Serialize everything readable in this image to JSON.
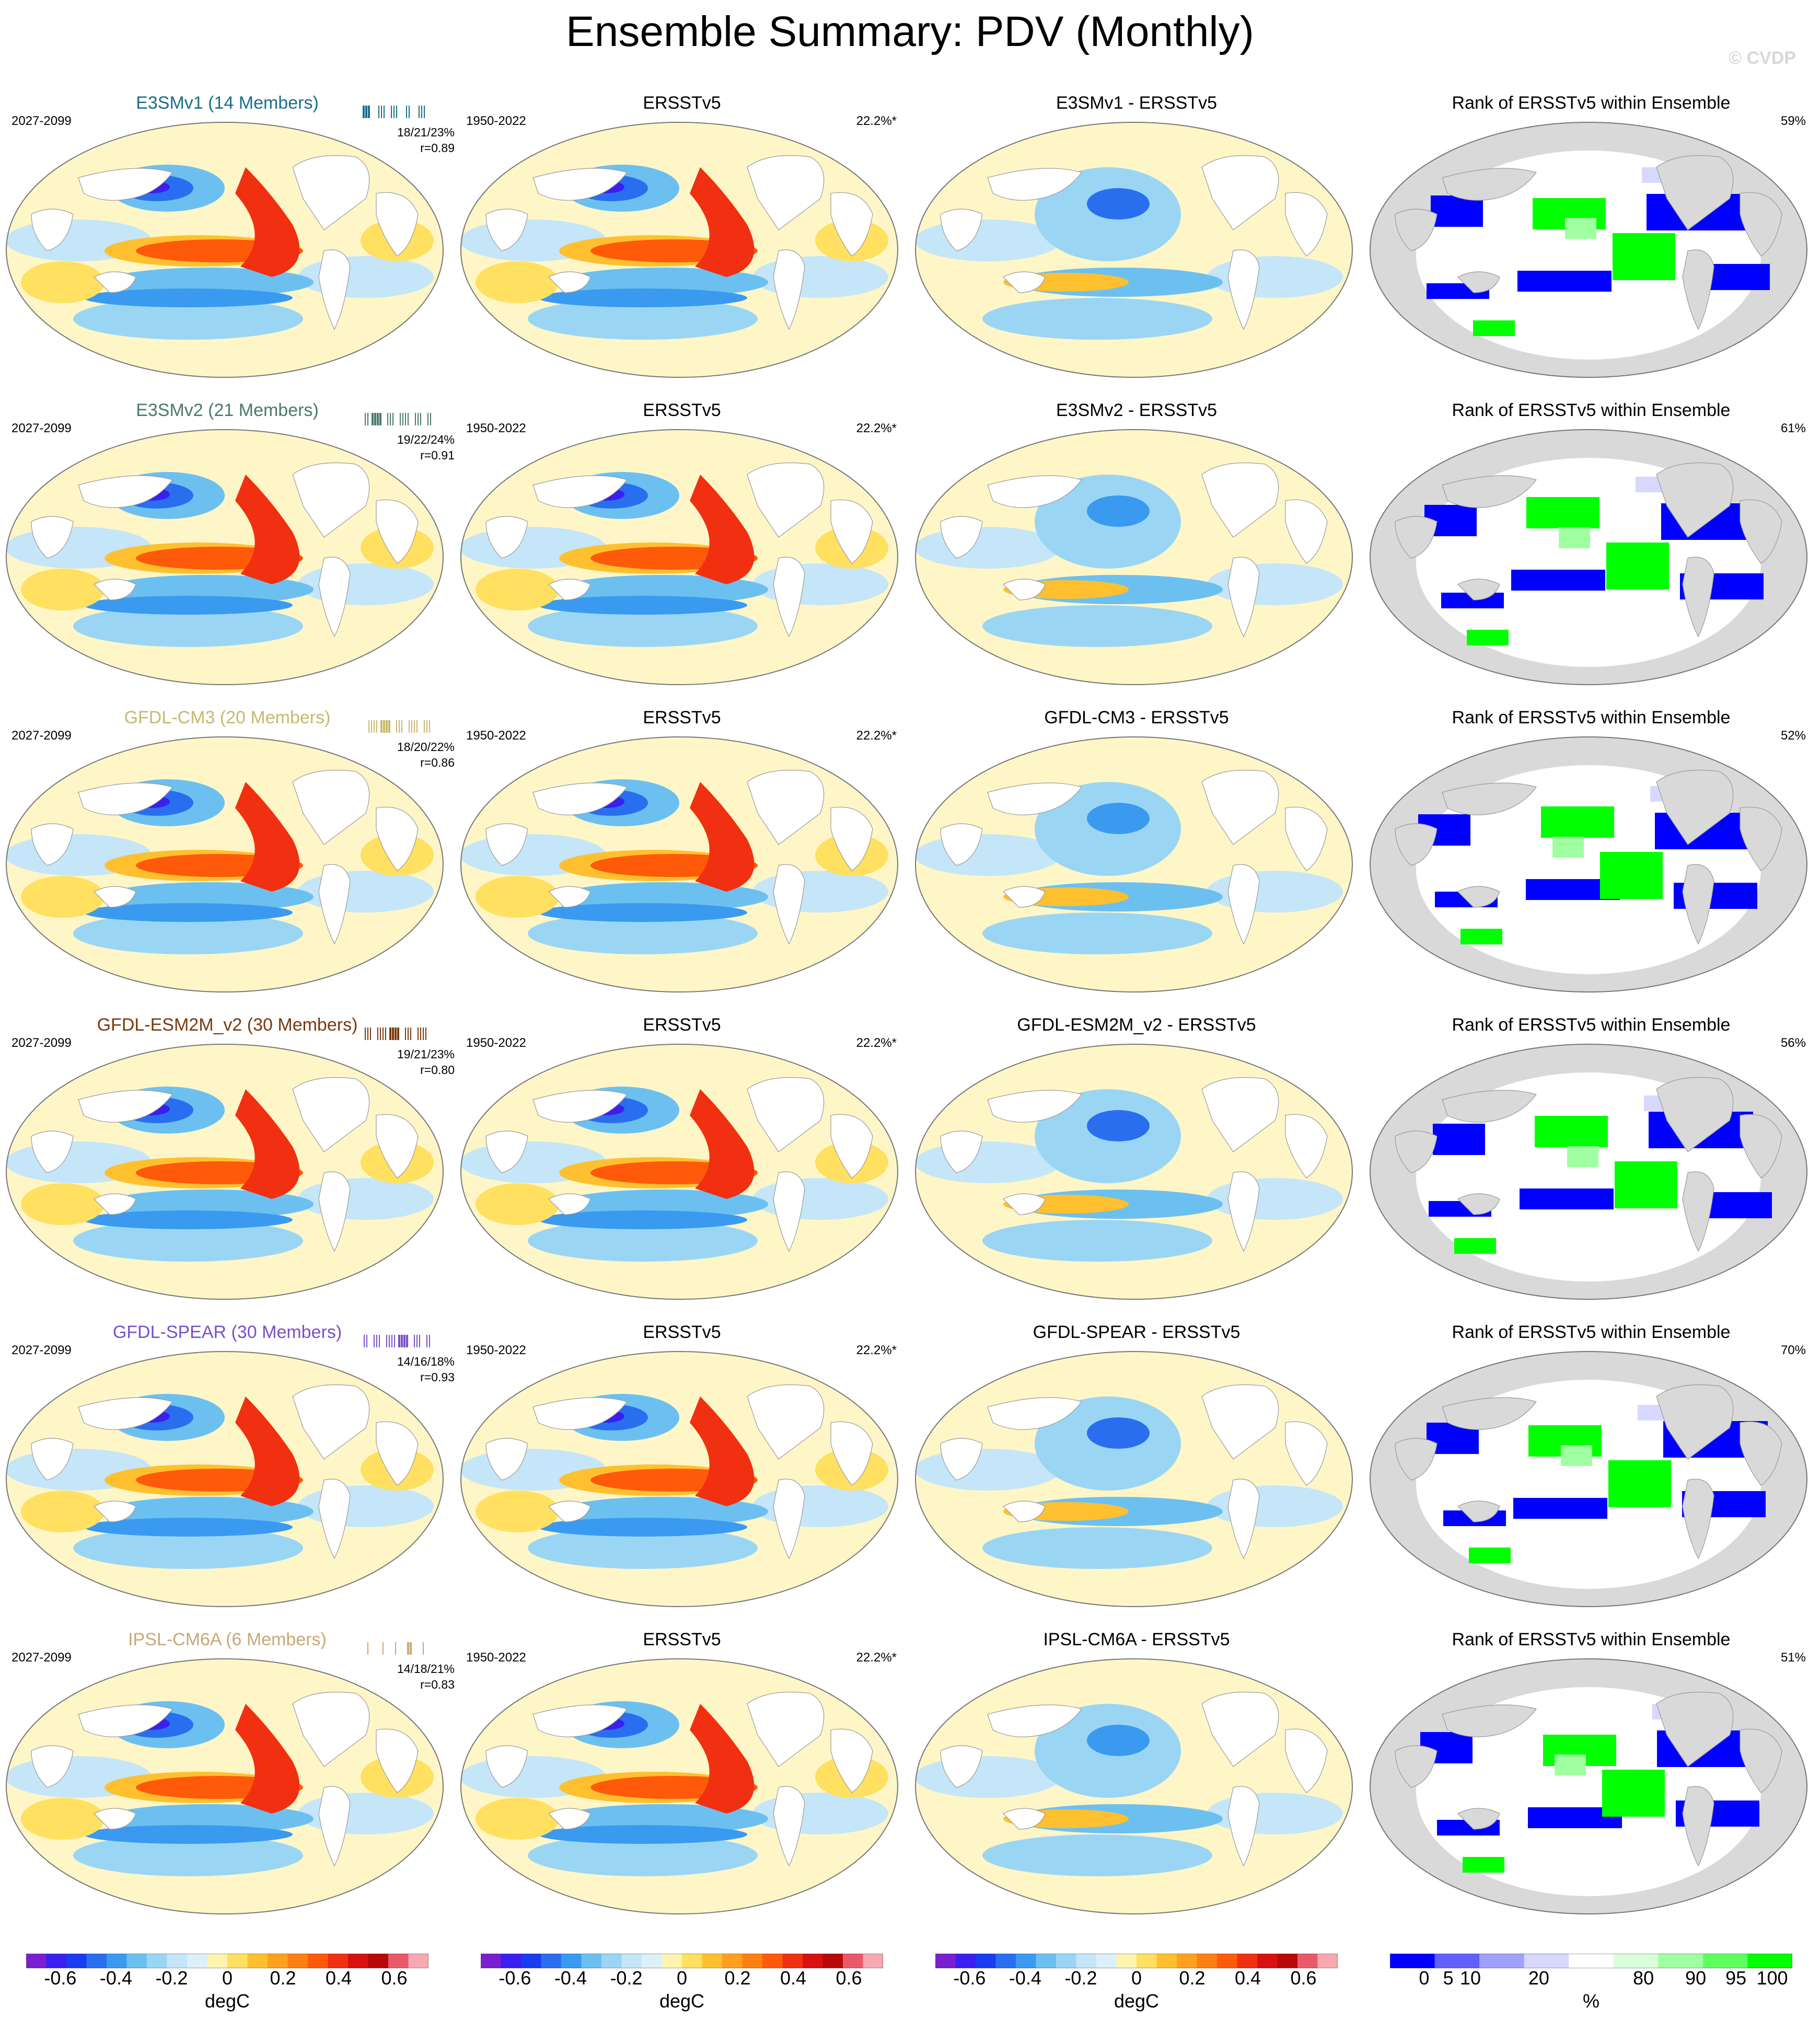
{
  "title": "Ensemble Summary: PDV (Monthly)",
  "watermark": "© CVDP",
  "colors": {
    "neg": [
      "#7a1fd0",
      "#3a1ff0",
      "#1a3cf0",
      "#2a6ef0",
      "#3a9af0",
      "#6cc0f0",
      "#9ad6f4",
      "#c4e6f8",
      "#dcf0fa"
    ],
    "pos": [
      "#fff3b0",
      "#ffe060",
      "#ffc030",
      "#ffa020",
      "#ff8010",
      "#ff5a0a",
      "#f03010",
      "#d81010",
      "#b80808",
      "#e85a6a",
      "#f7a8b0"
    ],
    "rank": [
      "#0000ff",
      "#6060ff",
      "#a0a0ff",
      "#d8d8ff",
      "#ffffff",
      "#d8ffd8",
      "#a0ffa0",
      "#60ff60",
      "#00ff00"
    ],
    "land_rank": "#d9d9d9"
  },
  "rows": [
    {
      "model": "E3SMv1 (14 Members)",
      "color": "#1a6e8a",
      "period": "2027-2099",
      "stats": "18/21/23%",
      "r": "r=0.89",
      "obs_period": "1950-2022",
      "obs_pct": "22.2%*",
      "diff": "E3SMv1 - ERSSTv5",
      "rank_pct": "59%"
    },
    {
      "model": "E3SMv2 (21 Members)",
      "color": "#4a7a6a",
      "period": "2027-2099",
      "stats": "19/22/24%",
      "r": "r=0.91",
      "obs_period": "1950-2022",
      "obs_pct": "22.2%*",
      "diff": "E3SMv2 - ERSSTv5",
      "rank_pct": "61%"
    },
    {
      "model": "GFDL-CM3 (20 Members)",
      "color": "#c8b870",
      "period": "2027-2099",
      "stats": "18/20/22%",
      "r": "r=0.86",
      "obs_period": "1950-2022",
      "obs_pct": "22.2%*",
      "diff": "GFDL-CM3 - ERSSTv5",
      "rank_pct": "52%"
    },
    {
      "model": "GFDL-ESM2M_v2 (30 Members)",
      "color": "#7a3a10",
      "period": "2027-2099",
      "stats": "19/21/23%",
      "r": "r=0.80",
      "obs_period": "1950-2022",
      "obs_pct": "22.2%*",
      "diff": "GFDL-ESM2M_v2 - ERSSTv5",
      "rank_pct": "56%"
    },
    {
      "model": "GFDL-SPEAR (30 Members)",
      "color": "#7a50c8",
      "period": "2027-2099",
      "stats": "14/16/18%",
      "r": "r=0.93",
      "obs_period": "1950-2022",
      "obs_pct": "22.2%*",
      "diff": "GFDL-SPEAR - ERSSTv5",
      "rank_pct": "70%"
    },
    {
      "model": "IPSL-CM6A (6 Members)",
      "color": "#c8a878",
      "period": "2027-2099",
      "stats": "14/18/21%",
      "r": "r=0.83",
      "obs_period": "1950-2022",
      "obs_pct": "22.2%*",
      "diff": "IPSL-CM6A - ERSSTv5",
      "rank_pct": "51%"
    }
  ],
  "obs_title": "ERSSTv5",
  "rank_title": "Rank of ERSSTv5 within Ensemble",
  "colorbars": [
    {
      "labels": [
        "-0.6",
        "-0.4",
        "-0.2",
        "0",
        "0.2",
        "0.4",
        "0.6"
      ],
      "unit": "degC"
    },
    {
      "labels": [
        "-0.6",
        "-0.4",
        "-0.2",
        "0",
        "0.2",
        "0.4",
        "0.6"
      ],
      "unit": "degC"
    },
    {
      "labels": [
        "-0.6",
        "-0.4",
        "-0.2",
        "0",
        "0.2",
        "0.4",
        "0.6"
      ],
      "unit": "degC"
    },
    {
      "labels": [
        "0",
        "5",
        "10",
        "20",
        "80",
        "90",
        "95",
        "100"
      ],
      "unit": "%"
    }
  ]
}
